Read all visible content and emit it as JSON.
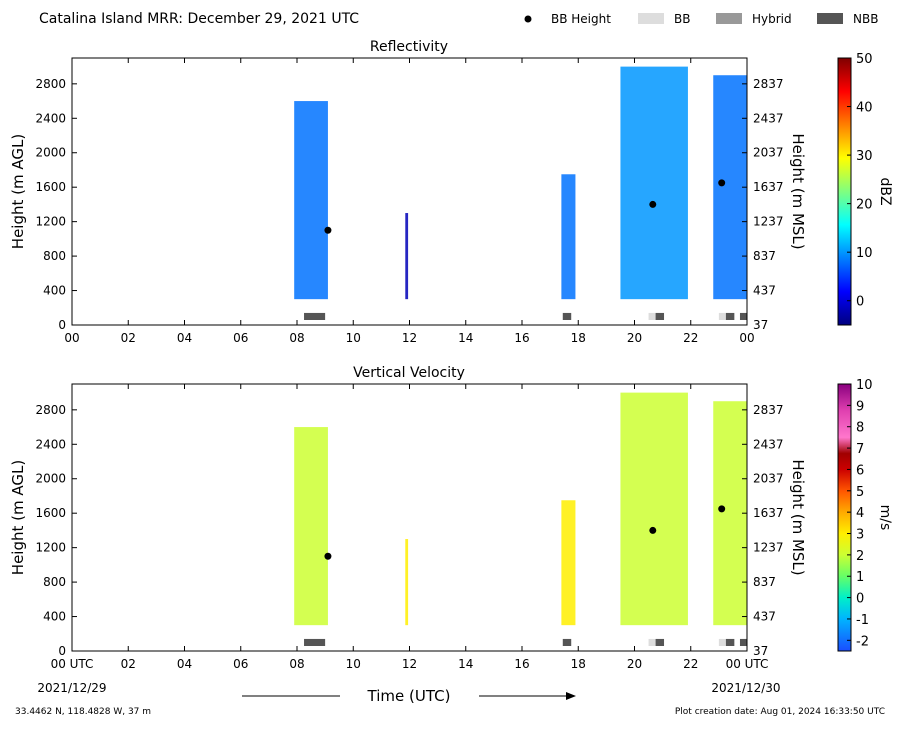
{
  "header": {
    "title": "Catalina Island MRR:  December 29, 2021 UTC",
    "legend": [
      {
        "label": "BB Height",
        "kind": "dot",
        "color": "#000000"
      },
      {
        "label": "BB",
        "kind": "swatch",
        "color": "#dddddd"
      },
      {
        "label": "Hybrid",
        "kind": "swatch",
        "color": "#999999"
      },
      {
        "label": "NBB",
        "kind": "swatch",
        "color": "#555555"
      }
    ]
  },
  "footer": {
    "location": "33.4462 N, 118.4828 W, 37 m",
    "created": "Plot creation date: Aug 01, 2024 16:33:50 UTC",
    "xlabel": "Time (UTC)",
    "date_start": "2021/12/29",
    "date_end": "2021/12/30"
  },
  "chart_data": [
    {
      "type": "heatmap",
      "title": "Reflectivity",
      "ylabel": "Height (m AGL)",
      "ylabel_right": "Height (m MSL)",
      "xlim": [
        0,
        24
      ],
      "ylim": [
        0,
        3100
      ],
      "x_ticks": [
        "00",
        "02",
        "04",
        "06",
        "08",
        "10",
        "12",
        "14",
        "16",
        "18",
        "20",
        "22",
        "00"
      ],
      "y_ticks": [
        0,
        400,
        800,
        1200,
        1600,
        2000,
        2400,
        2800
      ],
      "y_ticks_right": [
        "37",
        "437",
        "837",
        "1237",
        "1637",
        "2037",
        "2437",
        "2837"
      ],
      "colorbar": {
        "label": "dBZ",
        "min": -5,
        "max": 50,
        "ticks": [
          "0",
          "10",
          "20",
          "30",
          "40",
          "50"
        ],
        "tick_values": [
          0,
          10,
          20,
          30,
          40,
          50
        ]
      },
      "echo_columns": [
        {
          "x0": 7.9,
          "x1": 9.1,
          "top": 2600,
          "bottom": 300,
          "value": 8
        },
        {
          "x0": 11.85,
          "x1": 11.95,
          "top": 1300,
          "bottom": 300,
          "value": -2
        },
        {
          "x0": 17.4,
          "x1": 17.9,
          "top": 1750,
          "bottom": 300,
          "value": 8
        },
        {
          "x0": 19.5,
          "x1": 21.9,
          "top": 3000,
          "bottom": 300,
          "value": 10
        },
        {
          "x0": 22.8,
          "x1": 24.0,
          "top": 2900,
          "bottom": 300,
          "value": 8
        }
      ],
      "bb_height": [
        {
          "x": 9.1,
          "y": 1100
        },
        {
          "x": 20.65,
          "y": 1400
        },
        {
          "x": 23.1,
          "y": 1650
        }
      ],
      "bb_type_bars": [
        {
          "x0": 8.25,
          "x1": 9.0,
          "type": "NBB"
        },
        {
          "x0": 17.45,
          "x1": 17.75,
          "type": "NBB"
        },
        {
          "x0": 20.5,
          "x1": 20.75,
          "type": "BB"
        },
        {
          "x0": 20.75,
          "x1": 21.05,
          "type": "NBB"
        },
        {
          "x0": 23.0,
          "x1": 23.25,
          "type": "BB"
        },
        {
          "x0": 23.25,
          "x1": 23.55,
          "type": "NBB"
        },
        {
          "x0": 23.75,
          "x1": 24.0,
          "type": "NBB"
        }
      ]
    },
    {
      "type": "heatmap",
      "title": "Vertical Velocity",
      "ylabel": "Height (m AGL)",
      "ylabel_right": "Height (m MSL)",
      "xlim": [
        0,
        24
      ],
      "ylim": [
        0,
        3100
      ],
      "x_ticks": [
        "00 UTC",
        "02",
        "04",
        "06",
        "08",
        "10",
        "12",
        "14",
        "16",
        "18",
        "20",
        "22",
        "00 UTC"
      ],
      "y_ticks": [
        0,
        400,
        800,
        1200,
        1600,
        2000,
        2400,
        2800
      ],
      "y_ticks_right": [
        "37",
        "437",
        "837",
        "1237",
        "1637",
        "2037",
        "2437",
        "2837"
      ],
      "colorbar": {
        "label": "m/s",
        "min": -2.5,
        "max": 10,
        "ticks": [
          "-2",
          "-1",
          "0",
          "1",
          "2",
          "3",
          "4",
          "5",
          "6",
          "7",
          "8",
          "9",
          "10"
        ],
        "tick_values": [
          -2,
          -1,
          0,
          1,
          2,
          3,
          4,
          5,
          6,
          7,
          8,
          9,
          10
        ]
      },
      "echo_columns": [
        {
          "x0": 7.9,
          "x1": 9.1,
          "top": 2600,
          "bottom": 300,
          "value": 2
        },
        {
          "x0": 11.85,
          "x1": 11.95,
          "top": 1300,
          "bottom": 300,
          "value": 3
        },
        {
          "x0": 17.4,
          "x1": 17.9,
          "top": 1750,
          "bottom": 300,
          "value": 3
        },
        {
          "x0": 19.5,
          "x1": 21.9,
          "top": 3000,
          "bottom": 300,
          "value": 2
        },
        {
          "x0": 22.8,
          "x1": 24.0,
          "top": 2900,
          "bottom": 300,
          "value": 2
        }
      ],
      "bb_height": [
        {
          "x": 9.1,
          "y": 1100
        },
        {
          "x": 20.65,
          "y": 1400
        },
        {
          "x": 23.1,
          "y": 1650
        }
      ],
      "bb_type_bars": [
        {
          "x0": 8.25,
          "x1": 9.0,
          "type": "NBB"
        },
        {
          "x0": 17.45,
          "x1": 17.75,
          "type": "NBB"
        },
        {
          "x0": 20.5,
          "x1": 20.75,
          "type": "BB"
        },
        {
          "x0": 20.75,
          "x1": 21.05,
          "type": "NBB"
        },
        {
          "x0": 23.0,
          "x1": 23.25,
          "type": "BB"
        },
        {
          "x0": 23.25,
          "x1": 23.55,
          "type": "NBB"
        },
        {
          "x0": 23.75,
          "x1": 24.0,
          "type": "NBB"
        }
      ]
    }
  ]
}
